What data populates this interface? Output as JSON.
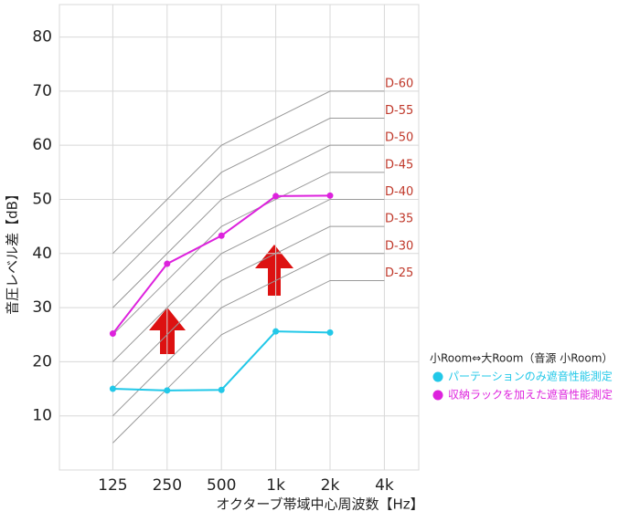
{
  "chart_data": {
    "type": "line",
    "x_label": "オクターブ帯域中心周波数【Hz】",
    "y_label": "音圧レベル差【dB】",
    "categories": [
      "125",
      "250",
      "500",
      "1k",
      "2k",
      "4k"
    ],
    "ylim": [
      0,
      86
    ],
    "yticks": [
      10,
      20,
      30,
      40,
      50,
      60,
      70,
      80
    ],
    "grid": true,
    "reference_curves": [
      {
        "name": "D-60",
        "color": "#c0392b",
        "values": [
          40,
          50,
          60,
          65,
          70,
          70
        ]
      },
      {
        "name": "D-55",
        "color": "#c0392b",
        "values": [
          35,
          45,
          55,
          60,
          65,
          65
        ]
      },
      {
        "name": "D-50",
        "color": "#c0392b",
        "values": [
          30,
          40,
          50,
          55,
          60,
          60
        ]
      },
      {
        "name": "D-45",
        "color": "#c0392b",
        "values": [
          25,
          35,
          45,
          50,
          55,
          55
        ]
      },
      {
        "name": "D-40",
        "color": "#c0392b",
        "values": [
          20,
          30,
          40,
          45,
          50,
          50
        ]
      },
      {
        "name": "D-35",
        "color": "#c0392b",
        "values": [
          15,
          25,
          35,
          40,
          45,
          45
        ]
      },
      {
        "name": "D-30",
        "color": "#c0392b",
        "values": [
          10,
          20,
          30,
          35,
          40,
          40
        ]
      },
      {
        "name": "D-25",
        "color": "#c0392b",
        "values": [
          5,
          15,
          25,
          30,
          35,
          35
        ]
      }
    ],
    "legend_title": "小Room⇔大Room（音源 小Room）",
    "series": [
      {
        "name": "パーテーションのみ遮音性能測定",
        "color": "#22c8e8",
        "values": [
          15,
          14.7,
          14.8,
          25.6,
          25.4,
          null
        ]
      },
      {
        "name": "収納ラックを加えた遮音性能測定",
        "color": "#dd22dd",
        "values": [
          25.2,
          38.1,
          43.3,
          50.6,
          50.7,
          null
        ]
      }
    ]
  }
}
